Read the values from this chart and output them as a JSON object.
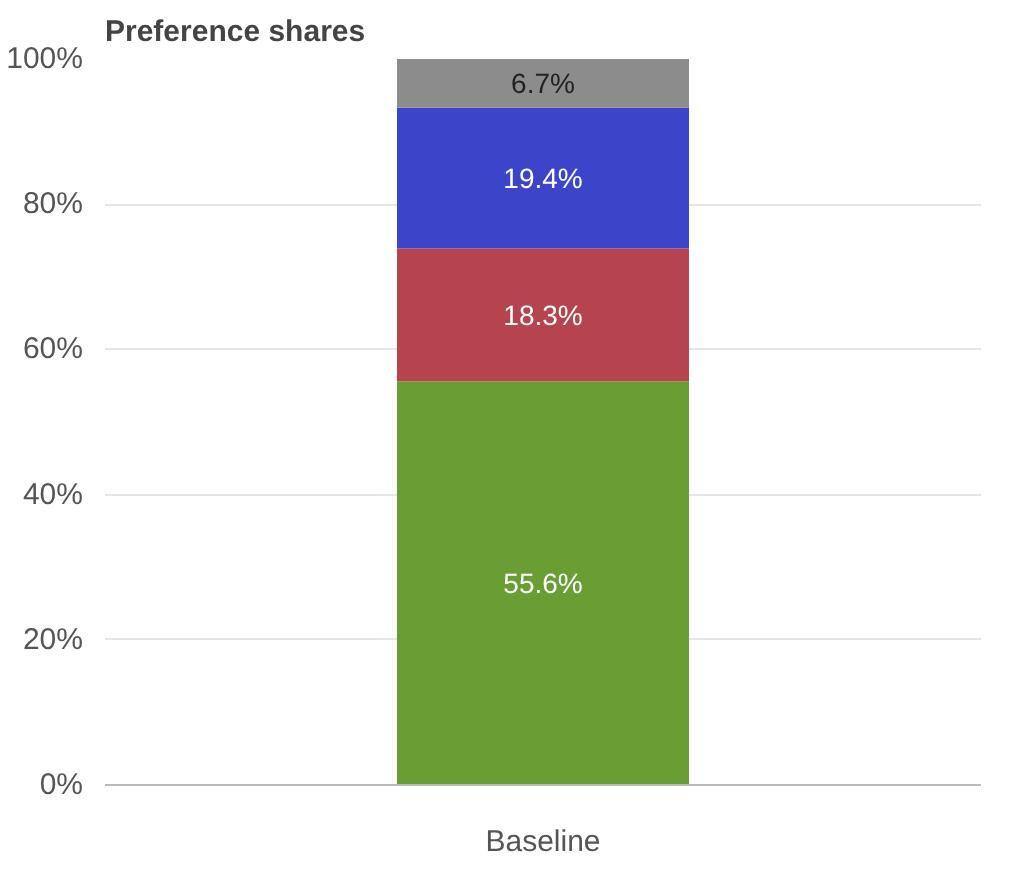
{
  "chart_data": {
    "type": "bar",
    "title": "Preference shares",
    "stacked": true,
    "categories": [
      "Baseline"
    ],
    "series": [
      {
        "color": "#6a9e35",
        "values": [
          55.6
        ],
        "value_labels": [
          "55.6%"
        ]
      },
      {
        "color": "#b5444f",
        "values": [
          18.3
        ],
        "value_labels": [
          "18.3%"
        ]
      },
      {
        "color": "#3c45c9",
        "values": [
          19.4
        ],
        "value_labels": [
          "19.4%"
        ]
      },
      {
        "color": "#8c8c8c",
        "values": [
          6.7
        ],
        "value_labels": [
          "6.7%"
        ]
      }
    ],
    "ylim": [
      0,
      100
    ],
    "yticks": [
      {
        "value": 0,
        "label": "0%"
      },
      {
        "value": 20,
        "label": "20%"
      },
      {
        "value": 40,
        "label": "40%"
      },
      {
        "value": 60,
        "label": "60%"
      },
      {
        "value": 80,
        "label": "80%"
      },
      {
        "value": 100,
        "label": "100%"
      }
    ],
    "grid": "y"
  }
}
